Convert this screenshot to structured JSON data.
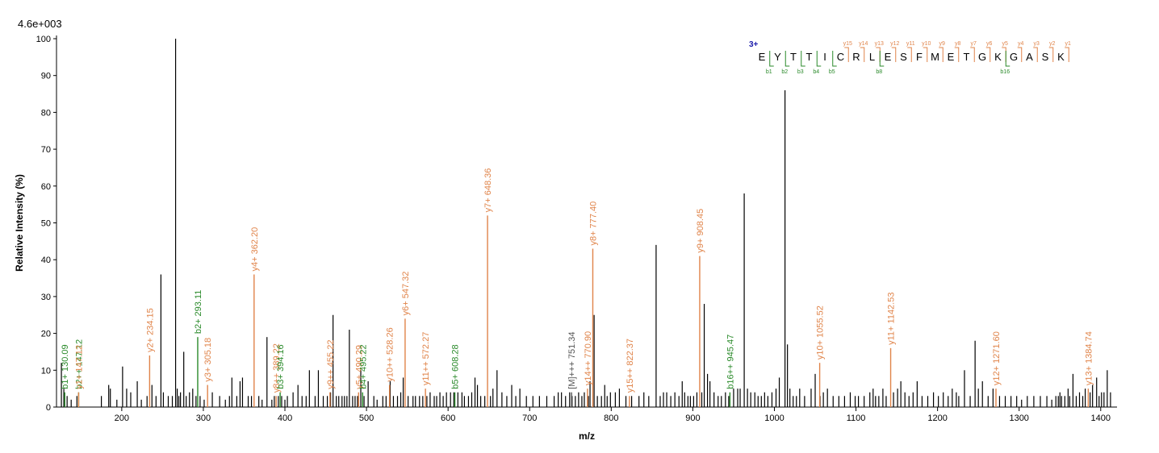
{
  "chart_data": {
    "type": "bar",
    "max_intensity_label": "4.6e+003",
    "xlabel": "m/z",
    "ylabel": "Relative   Intensity (%)",
    "xlim": [
      120,
      1420
    ],
    "ylim": [
      0,
      100
    ],
    "xticks": [
      200,
      300,
      400,
      500,
      600,
      700,
      800,
      900,
      1000,
      1100,
      1200,
      1300,
      1400
    ],
    "yticks": [
      0,
      10,
      20,
      30,
      40,
      50,
      60,
      70,
      80,
      90,
      100
    ],
    "grid": false,
    "colors": {
      "unassigned": "#000000",
      "y_ion": "#e0844a",
      "b_ion": "#2a8a2a",
      "precursor": "#555555",
      "charge": "#1a1aaa"
    },
    "peptide": {
      "charge": "3+",
      "sequence": [
        "E",
        "Y",
        "T",
        "T",
        "I",
        "C",
        "R",
        "L",
        "E",
        "S",
        "F",
        "M",
        "E",
        "T",
        "G",
        "K",
        "G",
        "A",
        "S",
        "K"
      ],
      "y_markers": [
        "y15",
        "y14",
        "y13",
        "y12",
        "y11",
        "y10",
        "y9",
        "y8",
        "y7",
        "y6",
        "y5",
        "y4",
        "y3",
        "y2",
        "y1"
      ],
      "b_markers": [
        "b1",
        "b2",
        "b3",
        "b4",
        "b5",
        "b8",
        "b16"
      ]
    },
    "annotated_peaks": [
      {
        "mz": 130.09,
        "intensity": 4,
        "label": "b1+ 130.09",
        "ion": "b"
      },
      {
        "mz": 147.12,
        "intensity": 4,
        "label": "b2++ 147.12",
        "ion": "b"
      },
      {
        "mz": 147.12,
        "intensity": 4,
        "label": "y1+ 147.12",
        "ion": "y"
      },
      {
        "mz": 234.15,
        "intensity": 14,
        "label": "y2+ 234.15",
        "ion": "y"
      },
      {
        "mz": 293.11,
        "intensity": 19,
        "label": "b2+ 293.11",
        "ion": "b"
      },
      {
        "mz": 305.18,
        "intensity": 6,
        "label": "y3+ 305.18",
        "ion": "y"
      },
      {
        "mz": 362.2,
        "intensity": 36,
        "label": "y4+ 362.20",
        "ion": "y"
      },
      {
        "mz": 389.22,
        "intensity": 3,
        "label": "y8++ 389.22",
        "ion": "y"
      },
      {
        "mz": 394.16,
        "intensity": 4,
        "label": "b3+ 394.16",
        "ion": "b"
      },
      {
        "mz": 455.22,
        "intensity": 4,
        "label": "y9++ 455.22",
        "ion": "y"
      },
      {
        "mz": 490.29,
        "intensity": 4,
        "label": "y5+ 490.29",
        "ion": "y"
      },
      {
        "mz": 495.22,
        "intensity": 4,
        "label": "b4+ 495.22",
        "ion": "b"
      },
      {
        "mz": 528.26,
        "intensity": 6,
        "label": "y10++ 528.26",
        "ion": "y"
      },
      {
        "mz": 547.32,
        "intensity": 24,
        "label": "y6+ 547.32",
        "ion": "y"
      },
      {
        "mz": 572.27,
        "intensity": 5,
        "label": "y11++ 572.27",
        "ion": "y"
      },
      {
        "mz": 608.28,
        "intensity": 4,
        "label": "b5+ 608.28",
        "ion": "b"
      },
      {
        "mz": 648.36,
        "intensity": 52,
        "label": "y7+ 648.36",
        "ion": "y"
      },
      {
        "mz": 751.34,
        "intensity": 4,
        "label": "[M]+++ 751.34",
        "ion": "precursor"
      },
      {
        "mz": 770.9,
        "intensity": 5,
        "label": "y14++ 770.90",
        "ion": "y"
      },
      {
        "mz": 777.4,
        "intensity": 43,
        "label": "y8+ 777.40",
        "ion": "y"
      },
      {
        "mz": 822.37,
        "intensity": 3,
        "label": "y15++ 822.37",
        "ion": "y"
      },
      {
        "mz": 908.45,
        "intensity": 41,
        "label": "y9+ 908.45",
        "ion": "y"
      },
      {
        "mz": 945.47,
        "intensity": 4,
        "label": "b16++ 945.47",
        "ion": "b"
      },
      {
        "mz": 1055.52,
        "intensity": 12,
        "label": "y10+ 1055.52",
        "ion": "y"
      },
      {
        "mz": 1142.53,
        "intensity": 16,
        "label": "y11+ 1142.53",
        "ion": "y"
      },
      {
        "mz": 1271.6,
        "intensity": 5,
        "label": "y12+ 1271.60",
        "ion": "y"
      },
      {
        "mz": 1384.74,
        "intensity": 5,
        "label": "y13+ 1384.74",
        "ion": "y"
      }
    ],
    "unassigned_peaks": [
      [
        126,
        12
      ],
      [
        129,
        5
      ],
      [
        133,
        3
      ],
      [
        138,
        2
      ],
      [
        145,
        3
      ],
      [
        175,
        3
      ],
      [
        184,
        6
      ],
      [
        186,
        5
      ],
      [
        194,
        2
      ],
      [
        201,
        11
      ],
      [
        206,
        5
      ],
      [
        211,
        4
      ],
      [
        219,
        7
      ],
      [
        224,
        2
      ],
      [
        231,
        3
      ],
      [
        237,
        6
      ],
      [
        242,
        3
      ],
      [
        248,
        36
      ],
      [
        251,
        4
      ],
      [
        257,
        3
      ],
      [
        262,
        3
      ],
      [
        266,
        100
      ],
      [
        268,
        5
      ],
      [
        270,
        3
      ],
      [
        272,
        4
      ],
      [
        276,
        15
      ],
      [
        279,
        3
      ],
      [
        283,
        4
      ],
      [
        287,
        5
      ],
      [
        291,
        3
      ],
      [
        296,
        3
      ],
      [
        301,
        2
      ],
      [
        311,
        4
      ],
      [
        320,
        3
      ],
      [
        327,
        2
      ],
      [
        332,
        3
      ],
      [
        335,
        8
      ],
      [
        341,
        3
      ],
      [
        345,
        7
      ],
      [
        348,
        8
      ],
      [
        355,
        3
      ],
      [
        359,
        3
      ],
      [
        368,
        3
      ],
      [
        372,
        2
      ],
      [
        378,
        19
      ],
      [
        384,
        2
      ],
      [
        387,
        3
      ],
      [
        392,
        3
      ],
      [
        396,
        3
      ],
      [
        400,
        2
      ],
      [
        403,
        3
      ],
      [
        410,
        4
      ],
      [
        416,
        6
      ],
      [
        421,
        3
      ],
      [
        426,
        3
      ],
      [
        430,
        10
      ],
      [
        437,
        3
      ],
      [
        441,
        10
      ],
      [
        447,
        3
      ],
      [
        452,
        3
      ],
      [
        456,
        4
      ],
      [
        459,
        25
      ],
      [
        463,
        3
      ],
      [
        466,
        3
      ],
      [
        470,
        3
      ],
      [
        473,
        3
      ],
      [
        476,
        3
      ],
      [
        479,
        21
      ],
      [
        483,
        3
      ],
      [
        486,
        3
      ],
      [
        489,
        3
      ],
      [
        493,
        10
      ],
      [
        497,
        3
      ],
      [
        502,
        7
      ],
      [
        509,
        3
      ],
      [
        513,
        2
      ],
      [
        520,
        3
      ],
      [
        524,
        3
      ],
      [
        529,
        7
      ],
      [
        533,
        3
      ],
      [
        538,
        3
      ],
      [
        542,
        4
      ],
      [
        545,
        8
      ],
      [
        551,
        3
      ],
      [
        557,
        3
      ],
      [
        560,
        3
      ],
      [
        565,
        3
      ],
      [
        569,
        3
      ],
      [
        574,
        3
      ],
      [
        578,
        4
      ],
      [
        583,
        3
      ],
      [
        586,
        3
      ],
      [
        590,
        4
      ],
      [
        594,
        3
      ],
      [
        598,
        4
      ],
      [
        603,
        4
      ],
      [
        607,
        4
      ],
      [
        612,
        4
      ],
      [
        617,
        4
      ],
      [
        620,
        3
      ],
      [
        625,
        3
      ],
      [
        629,
        4
      ],
      [
        633,
        8
      ],
      [
        636,
        6
      ],
      [
        640,
        3
      ],
      [
        645,
        3
      ],
      [
        652,
        3
      ],
      [
        655,
        5
      ],
      [
        660,
        10
      ],
      [
        666,
        4
      ],
      [
        672,
        3
      ],
      [
        678,
        6
      ],
      [
        683,
        3
      ],
      [
        688,
        5
      ],
      [
        696,
        3
      ],
      [
        704,
        3
      ],
      [
        712,
        3
      ],
      [
        721,
        3
      ],
      [
        730,
        3
      ],
      [
        735,
        4
      ],
      [
        739,
        4
      ],
      [
        744,
        3
      ],
      [
        749,
        4
      ],
      [
        752,
        3
      ],
      [
        756,
        3
      ],
      [
        760,
        4
      ],
      [
        764,
        3
      ],
      [
        767,
        4
      ],
      [
        772,
        3
      ],
      [
        774,
        7
      ],
      [
        779,
        25
      ],
      [
        783,
        3
      ],
      [
        788,
        3
      ],
      [
        792,
        6
      ],
      [
        795,
        3
      ],
      [
        799,
        4
      ],
      [
        805,
        4
      ],
      [
        810,
        5
      ],
      [
        818,
        3
      ],
      [
        825,
        3
      ],
      [
        834,
        3
      ],
      [
        840,
        4
      ],
      [
        846,
        3
      ],
      [
        855,
        44
      ],
      [
        860,
        3
      ],
      [
        864,
        4
      ],
      [
        868,
        4
      ],
      [
        873,
        3
      ],
      [
        878,
        4
      ],
      [
        883,
        3
      ],
      [
        887,
        7
      ],
      [
        890,
        4
      ],
      [
        894,
        3
      ],
      [
        897,
        3
      ],
      [
        901,
        3
      ],
      [
        905,
        4
      ],
      [
        911,
        4
      ],
      [
        914,
        28
      ],
      [
        918,
        9
      ],
      [
        921,
        7
      ],
      [
        926,
        4
      ],
      [
        931,
        3
      ],
      [
        935,
        3
      ],
      [
        940,
        4
      ],
      [
        944,
        3
      ],
      [
        950,
        5
      ],
      [
        955,
        5
      ],
      [
        958,
        5
      ],
      [
        963,
        58
      ],
      [
        967,
        5
      ],
      [
        971,
        4
      ],
      [
        976,
        4
      ],
      [
        980,
        3
      ],
      [
        984,
        3
      ],
      [
        988,
        4
      ],
      [
        992,
        3
      ],
      [
        997,
        4
      ],
      [
        1002,
        5
      ],
      [
        1006,
        8
      ],
      [
        1013,
        86
      ],
      [
        1016,
        17
      ],
      [
        1019,
        5
      ],
      [
        1023,
        3
      ],
      [
        1027,
        3
      ],
      [
        1031,
        5
      ],
      [
        1037,
        3
      ],
      [
        1045,
        5
      ],
      [
        1050,
        9
      ],
      [
        1056,
        3
      ],
      [
        1060,
        4
      ],
      [
        1065,
        5
      ],
      [
        1072,
        3
      ],
      [
        1079,
        3
      ],
      [
        1086,
        3
      ],
      [
        1093,
        4
      ],
      [
        1099,
        3
      ],
      [
        1103,
        3
      ],
      [
        1110,
        3
      ],
      [
        1117,
        4
      ],
      [
        1121,
        5
      ],
      [
        1124,
        3
      ],
      [
        1128,
        3
      ],
      [
        1133,
        5
      ],
      [
        1137,
        3
      ],
      [
        1146,
        4
      ],
      [
        1151,
        5
      ],
      [
        1155,
        7
      ],
      [
        1160,
        4
      ],
      [
        1165,
        3
      ],
      [
        1170,
        4
      ],
      [
        1175,
        7
      ],
      [
        1181,
        3
      ],
      [
        1188,
        3
      ],
      [
        1195,
        4
      ],
      [
        1201,
        3
      ],
      [
        1207,
        4
      ],
      [
        1213,
        3
      ],
      [
        1218,
        5
      ],
      [
        1223,
        4
      ],
      [
        1226,
        3
      ],
      [
        1233,
        10
      ],
      [
        1240,
        3
      ],
      [
        1246,
        18
      ],
      [
        1250,
        5
      ],
      [
        1255,
        7
      ],
      [
        1262,
        3
      ],
      [
        1268,
        5
      ],
      [
        1276,
        3
      ],
      [
        1283,
        3
      ],
      [
        1290,
        3
      ],
      [
        1297,
        3
      ],
      [
        1303,
        2
      ],
      [
        1310,
        3
      ],
      [
        1318,
        3
      ],
      [
        1326,
        3
      ],
      [
        1334,
        3
      ],
      [
        1340,
        2
      ],
      [
        1345,
        3
      ],
      [
        1348,
        3
      ],
      [
        1350,
        4
      ],
      [
        1352,
        3
      ],
      [
        1356,
        3
      ],
      [
        1360,
        5
      ],
      [
        1362,
        3
      ],
      [
        1366,
        9
      ],
      [
        1370,
        3
      ],
      [
        1374,
        4
      ],
      [
        1378,
        3
      ],
      [
        1381,
        5
      ],
      [
        1387,
        4
      ],
      [
        1390,
        6
      ],
      [
        1395,
        8
      ],
      [
        1398,
        3
      ],
      [
        1401,
        4
      ],
      [
        1404,
        4
      ],
      [
        1408,
        10
      ],
      [
        1412,
        4
      ]
    ]
  }
}
